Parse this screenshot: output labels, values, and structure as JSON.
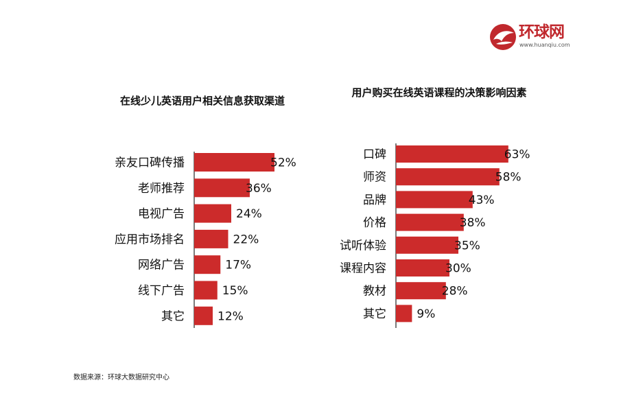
{
  "logo": {
    "text": "环球网",
    "url": "www.huanqiu.com"
  },
  "source": "数据来源：环球大数据研究中心",
  "colors": {
    "bar": "#cc2b2b",
    "axis": "#222222"
  },
  "chart_data": [
    {
      "type": "bar",
      "orientation": "horizontal",
      "title": "在线少儿英语用户相关信息获取渠道",
      "categories": [
        "亲友口碑传播",
        "老师推荐",
        "电视广告",
        "应用市场排名",
        "网络广告",
        "线下广告",
        "其它"
      ],
      "values": [
        52,
        36,
        24,
        22,
        17,
        15,
        12
      ],
      "value_labels": [
        "52%",
        "36%",
        "24%",
        "22%",
        "17%",
        "15%",
        "12%"
      ],
      "unit": "%"
    },
    {
      "type": "bar",
      "orientation": "horizontal",
      "title": "用户购买在线英语课程的决策影响因素",
      "categories": [
        "口碑",
        "师资",
        "品牌",
        "价格",
        "试听体验",
        "课程内容",
        "教材",
        "其它"
      ],
      "values": [
        63,
        58,
        43,
        38,
        35,
        30,
        28,
        9
      ],
      "value_labels": [
        "63%",
        "58%",
        "43%",
        "38%",
        "35%",
        "30%",
        "28%",
        "9%"
      ],
      "unit": "%"
    }
  ]
}
